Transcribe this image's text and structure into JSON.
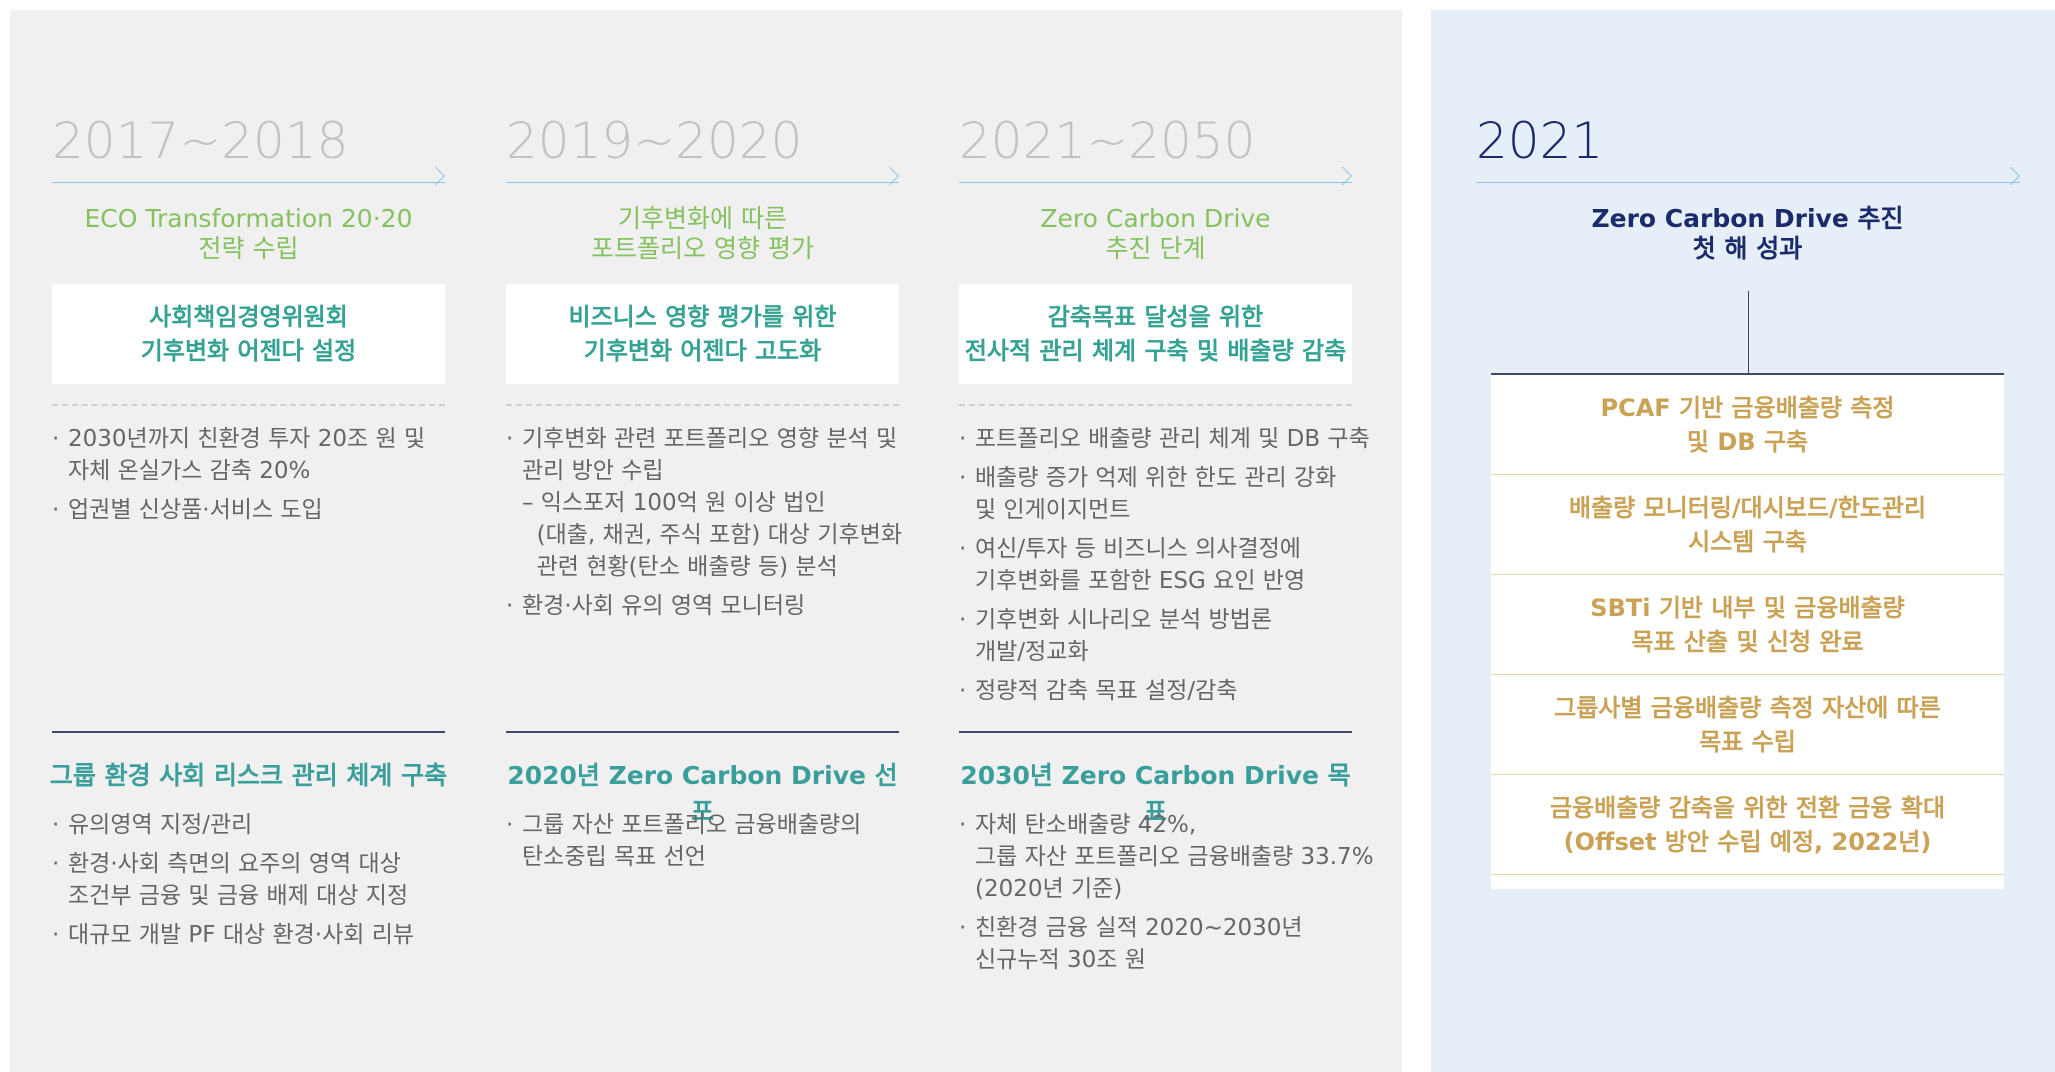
{
  "columns": [
    {
      "year": "2017~2018",
      "title": "ECO Transformation 20·20\n전략 수립",
      "box": "사회책임경영위원회\n기후변화 어젠다 설정",
      "bullets": [
        "2030년까지 친환경 투자 20조 원 및\n자체 온실가스 감축 20%",
        "업권별 신상품·서비스 도입"
      ],
      "bottom_title": "그룹 환경 사회 리스크 관리 체계 구축",
      "bottom_bullets": [
        "유의영역 지정/관리",
        "환경·사회 측면의 요주의 영역 대상\n조건부 금융 및 금융 배제 대상 지정",
        "대규모 개발 PF 대상 환경·사회 리뷰"
      ]
    },
    {
      "year": "2019~2020",
      "title": "기후변화에 따른\n포트폴리오 영향 평가",
      "box": "비즈니스 영향 평가를 위한\n기후변화 어젠다 고도화",
      "bullets": [
        "기후변화 관련 포트폴리오 영향 분석 및\n관리 방안 수립\n– 익스포저 100억 원 이상 법인\n  (대출, 채권, 주식 포함) 대상 기후변화\n  관련 현황(탄소 배출량 등) 분석",
        "환경·사회 유의 영역 모니터링"
      ],
      "bottom_title": "2020년 Zero Carbon Drive 선포",
      "bottom_bullets": [
        "그룹 자산 포트폴리오 금융배출량의\n탄소중립 목표 선언"
      ]
    },
    {
      "year": "2021~2050",
      "title": "Zero Carbon Drive\n추진 단계",
      "box": "감축목표 달성을 위한\n전사적 관리 체계 구축 및 배출량 감축",
      "bullets": [
        "포트폴리오 배출량 관리 체계 및 DB 구축",
        "배출량 증가 억제 위한 한도 관리 강화\n및 인게이지먼트",
        "여신/투자 등 비즈니스 의사결정에\n기후변화를 포함한 ESG 요인 반영",
        "기후변화 시나리오 분석 방법론\n개발/정교화",
        "정량적 감축 목표 설정/감축"
      ],
      "bottom_title": "2030년 Zero Carbon Drive 목표",
      "bottom_bullets": [
        "자체 탄소배출량 42%,\n그룹 자산 포트폴리오 금융배출량 33.7%\n(2020년 기준)",
        "친환경 금융 실적 2020~2030년\n신규누적 30조 원"
      ]
    }
  ],
  "result": {
    "year": "2021",
    "title": "Zero Carbon Drive 추진\n첫 해 성과",
    "items": [
      "PCAF 기반 금융배출량 측정\n및 DB 구축",
      "배출량 모니터링/대시보드/한도관리\n시스템 구축",
      "SBTi 기반 내부 및 금융배출량\n목표 산출 및 신청 완료",
      "그룹사별 금융배출량 측정 자산에 따른\n목표 수립",
      "금융배출량 감축을 위한 전환 금융 확대\n(Offset 방안 수립 예정, 2022년)"
    ]
  }
}
